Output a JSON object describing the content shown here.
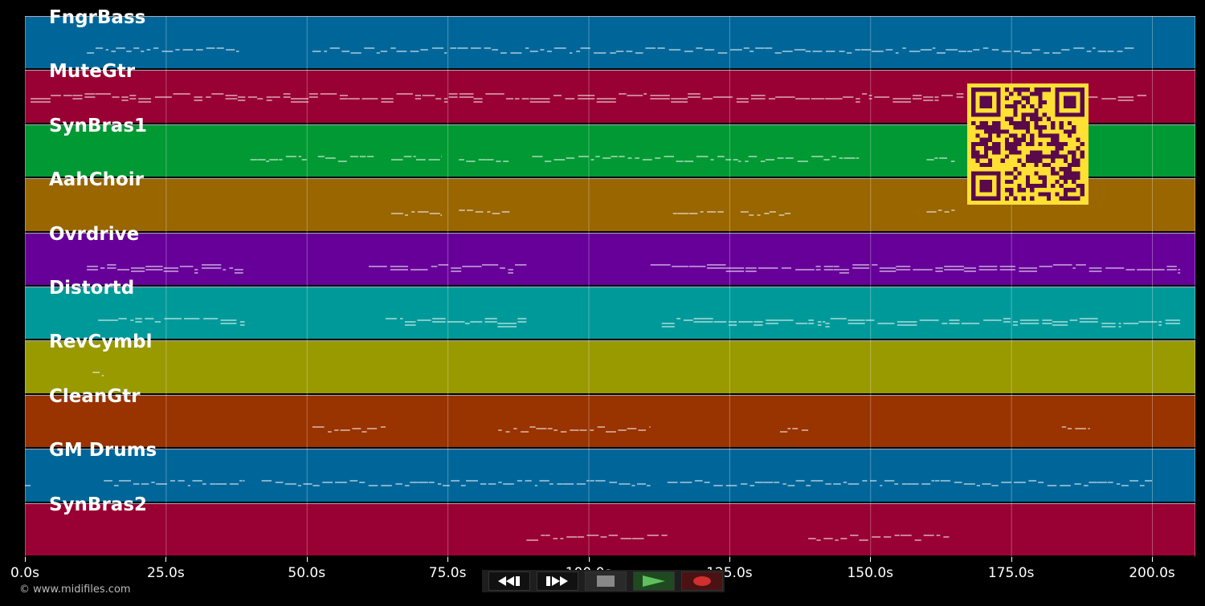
{
  "tracks": [
    {
      "name": "FngrBass",
      "color": "#006699"
    },
    {
      "name": "MuteGtr",
      "color": "#990033"
    },
    {
      "name": "SynBras1",
      "color": "#009933"
    },
    {
      "name": "AahChoir",
      "color": "#996600"
    },
    {
      "name": "Ovrdrive",
      "color": "#660099"
    },
    {
      "name": "Distortd",
      "color": "#009999"
    },
    {
      "name": "RevCymbl",
      "color": "#999900"
    },
    {
      "name": "CleanGtr",
      "color": "#993300"
    },
    {
      "name": "GM Drums",
      "color": "#006699"
    },
    {
      "name": "SynBras2",
      "color": "#990033"
    }
  ],
  "axis": {
    "ticks": [
      "0.0s",
      "25.0s",
      "50.0s",
      "75.0s",
      "100.0s",
      "125.0s",
      "150.0s",
      "175.0s",
      "200.0s"
    ]
  },
  "footer": {
    "copyright": "© www.midifiles.com"
  },
  "transport": {
    "buttons": [
      {
        "name": "rewind-button",
        "icon": "rewind-icon",
        "color": "#ffffff"
      },
      {
        "name": "fast-forward-button",
        "icon": "fast-forward-icon",
        "color": "#ffffff"
      },
      {
        "name": "stop-button",
        "icon": "stop-icon",
        "color": "#888888"
      },
      {
        "name": "play-button",
        "icon": "play-icon",
        "color": "#5fbf5f"
      },
      {
        "name": "record-button",
        "icon": "record-icon",
        "color": "#d03030"
      }
    ]
  },
  "qr": {
    "fg": "#5a0a4a",
    "bg": "#ffe033"
  }
}
